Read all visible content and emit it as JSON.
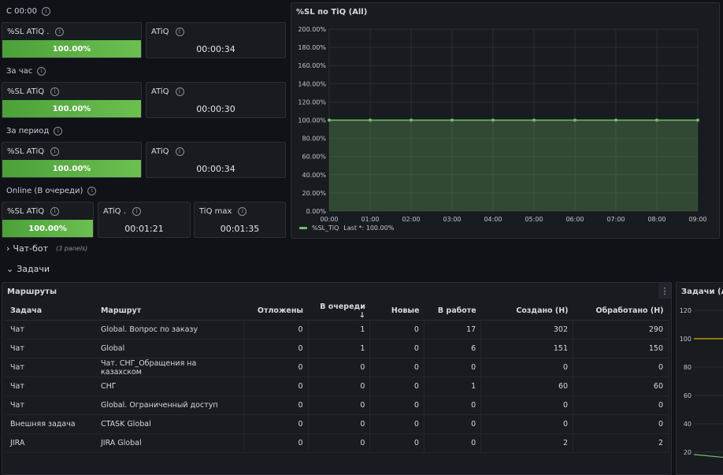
{
  "sections": {
    "s1": "С 00:00",
    "s2": "За час",
    "s3": "За период",
    "s4": "Online (В очереди)"
  },
  "stats": {
    "r1": {
      "sl_title": "%SL ATiQ .",
      "sl_val": "100.00%",
      "at_title": "ATiQ",
      "at_val": "00:00:34"
    },
    "r2": {
      "sl_title": "%SL ATiQ",
      "sl_val": "100.00%",
      "at_title": "ATiQ",
      "at_val": "00:00:30"
    },
    "r3": {
      "sl_title": "%SL ATiQ",
      "sl_val": "100.00%",
      "at_title": "ATiQ",
      "at_val": "00:00:34"
    },
    "r4": {
      "sl_title": "%SL ATiQ",
      "sl_val": "100.00%",
      "at_title": "ATiQ .",
      "at_val": "00:01:21",
      "max_title": "TiQ max",
      "max_val": "00:01:35"
    }
  },
  "chart_panel": {
    "title": "%SL по TiQ (All)",
    "legend_name": "%SL_TiQ",
    "legend_last": "Last *: 100.00%"
  },
  "chart_data": {
    "type": "area",
    "x": [
      "00:00",
      "01:00",
      "02:00",
      "03:00",
      "04:00",
      "05:00",
      "06:00",
      "07:00",
      "08:00",
      "09:00"
    ],
    "series": [
      {
        "name": "%SL_TiQ",
        "values": [
          100,
          100,
          100,
          100,
          100,
          100,
          100,
          100,
          100,
          100
        ]
      }
    ],
    "ylim": [
      0,
      200
    ],
    "yticks": [
      "0.00%",
      "20.00%",
      "40.00%",
      "60.00%",
      "80.00%",
      "100.00%",
      "120.00%",
      "140.00%",
      "160.00%",
      "180.00%",
      "200.00%"
    ],
    "grid": true,
    "color": "#73bf69"
  },
  "rows": {
    "chatbot": "Чат-бот",
    "chatbot_note": "(3 panels)",
    "tasks": "Задачи"
  },
  "routes": {
    "title": "Маршруты",
    "columns": [
      "Задача",
      "Маршрут",
      "Отложены",
      "В очереди ↓",
      "Новые",
      "В работе",
      "Создано (Н)",
      "Обработано (Н)"
    ],
    "rows": [
      [
        "Чат",
        "Global. Вопрос по заказу",
        "0",
        "1",
        "0",
        "17",
        "302",
        "290"
      ],
      [
        "Чат",
        "Global",
        "0",
        "1",
        "0",
        "6",
        "151",
        "150"
      ],
      [
        "Чат",
        "Чат. СНГ_Обращения на казахском",
        "0",
        "0",
        "0",
        "0",
        "0",
        "0"
      ],
      [
        "Чат",
        "СНГ",
        "0",
        "0",
        "0",
        "1",
        "60",
        "60"
      ],
      [
        "Чат",
        "Global. Ограниченный доступ",
        "0",
        "0",
        "0",
        "0",
        "0",
        "0"
      ],
      [
        "Внешняя задача",
        "CTASK Global",
        "0",
        "0",
        "0",
        "0",
        "0",
        "0"
      ],
      [
        "JIRA",
        "JIRA Global",
        "0",
        "0",
        "0",
        "0",
        "2",
        "2"
      ]
    ]
  },
  "tasks_panel": {
    "title": "Задачи (All)",
    "yticks": [
      "20",
      "40",
      "60",
      "80",
      "100",
      "120"
    ]
  },
  "colors": {
    "accent": "#73bf69",
    "bg": "#111217",
    "panel": "#181b1f"
  }
}
